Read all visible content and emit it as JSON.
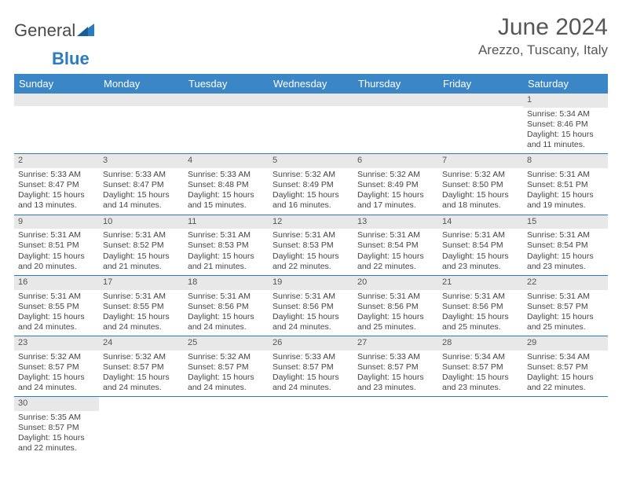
{
  "brand": {
    "name_a": "General",
    "name_b": "Blue"
  },
  "title": "June 2024",
  "location": "Arezzo, Tuscany, Italy",
  "colors": {
    "header_bg": "#3b86c6",
    "rule": "#2b7bbf",
    "stripe": "#e8e8e8",
    "text": "#444"
  },
  "day_names": [
    "Sunday",
    "Monday",
    "Tuesday",
    "Wednesday",
    "Thursday",
    "Friday",
    "Saturday"
  ],
  "weeks": [
    [
      null,
      null,
      null,
      null,
      null,
      null,
      {
        "n": "1",
        "sr": "5:34 AM",
        "ss": "8:46 PM",
        "dl": "15 hours and 11 minutes."
      }
    ],
    [
      {
        "n": "2",
        "sr": "5:33 AM",
        "ss": "8:47 PM",
        "dl": "15 hours and 13 minutes."
      },
      {
        "n": "3",
        "sr": "5:33 AM",
        "ss": "8:47 PM",
        "dl": "15 hours and 14 minutes."
      },
      {
        "n": "4",
        "sr": "5:33 AM",
        "ss": "8:48 PM",
        "dl": "15 hours and 15 minutes."
      },
      {
        "n": "5",
        "sr": "5:32 AM",
        "ss": "8:49 PM",
        "dl": "15 hours and 16 minutes."
      },
      {
        "n": "6",
        "sr": "5:32 AM",
        "ss": "8:49 PM",
        "dl": "15 hours and 17 minutes."
      },
      {
        "n": "7",
        "sr": "5:32 AM",
        "ss": "8:50 PM",
        "dl": "15 hours and 18 minutes."
      },
      {
        "n": "8",
        "sr": "5:31 AM",
        "ss": "8:51 PM",
        "dl": "15 hours and 19 minutes."
      }
    ],
    [
      {
        "n": "9",
        "sr": "5:31 AM",
        "ss": "8:51 PM",
        "dl": "15 hours and 20 minutes."
      },
      {
        "n": "10",
        "sr": "5:31 AM",
        "ss": "8:52 PM",
        "dl": "15 hours and 21 minutes."
      },
      {
        "n": "11",
        "sr": "5:31 AM",
        "ss": "8:53 PM",
        "dl": "15 hours and 21 minutes."
      },
      {
        "n": "12",
        "sr": "5:31 AM",
        "ss": "8:53 PM",
        "dl": "15 hours and 22 minutes."
      },
      {
        "n": "13",
        "sr": "5:31 AM",
        "ss": "8:54 PM",
        "dl": "15 hours and 22 minutes."
      },
      {
        "n": "14",
        "sr": "5:31 AM",
        "ss": "8:54 PM",
        "dl": "15 hours and 23 minutes."
      },
      {
        "n": "15",
        "sr": "5:31 AM",
        "ss": "8:54 PM",
        "dl": "15 hours and 23 minutes."
      }
    ],
    [
      {
        "n": "16",
        "sr": "5:31 AM",
        "ss": "8:55 PM",
        "dl": "15 hours and 24 minutes."
      },
      {
        "n": "17",
        "sr": "5:31 AM",
        "ss": "8:55 PM",
        "dl": "15 hours and 24 minutes."
      },
      {
        "n": "18",
        "sr": "5:31 AM",
        "ss": "8:56 PM",
        "dl": "15 hours and 24 minutes."
      },
      {
        "n": "19",
        "sr": "5:31 AM",
        "ss": "8:56 PM",
        "dl": "15 hours and 24 minutes."
      },
      {
        "n": "20",
        "sr": "5:31 AM",
        "ss": "8:56 PM",
        "dl": "15 hours and 25 minutes."
      },
      {
        "n": "21",
        "sr": "5:31 AM",
        "ss": "8:56 PM",
        "dl": "15 hours and 25 minutes."
      },
      {
        "n": "22",
        "sr": "5:31 AM",
        "ss": "8:57 PM",
        "dl": "15 hours and 25 minutes."
      }
    ],
    [
      {
        "n": "23",
        "sr": "5:32 AM",
        "ss": "8:57 PM",
        "dl": "15 hours and 24 minutes."
      },
      {
        "n": "24",
        "sr": "5:32 AM",
        "ss": "8:57 PM",
        "dl": "15 hours and 24 minutes."
      },
      {
        "n": "25",
        "sr": "5:32 AM",
        "ss": "8:57 PM",
        "dl": "15 hours and 24 minutes."
      },
      {
        "n": "26",
        "sr": "5:33 AM",
        "ss": "8:57 PM",
        "dl": "15 hours and 24 minutes."
      },
      {
        "n": "27",
        "sr": "5:33 AM",
        "ss": "8:57 PM",
        "dl": "15 hours and 23 minutes."
      },
      {
        "n": "28",
        "sr": "5:34 AM",
        "ss": "8:57 PM",
        "dl": "15 hours and 23 minutes."
      },
      {
        "n": "29",
        "sr": "5:34 AM",
        "ss": "8:57 PM",
        "dl": "15 hours and 22 minutes."
      }
    ],
    [
      {
        "n": "30",
        "sr": "5:35 AM",
        "ss": "8:57 PM",
        "dl": "15 hours and 22 minutes."
      },
      null,
      null,
      null,
      null,
      null,
      null
    ]
  ],
  "labels": {
    "sunrise": "Sunrise: ",
    "sunset": "Sunset: ",
    "daylight": "Daylight: "
  }
}
